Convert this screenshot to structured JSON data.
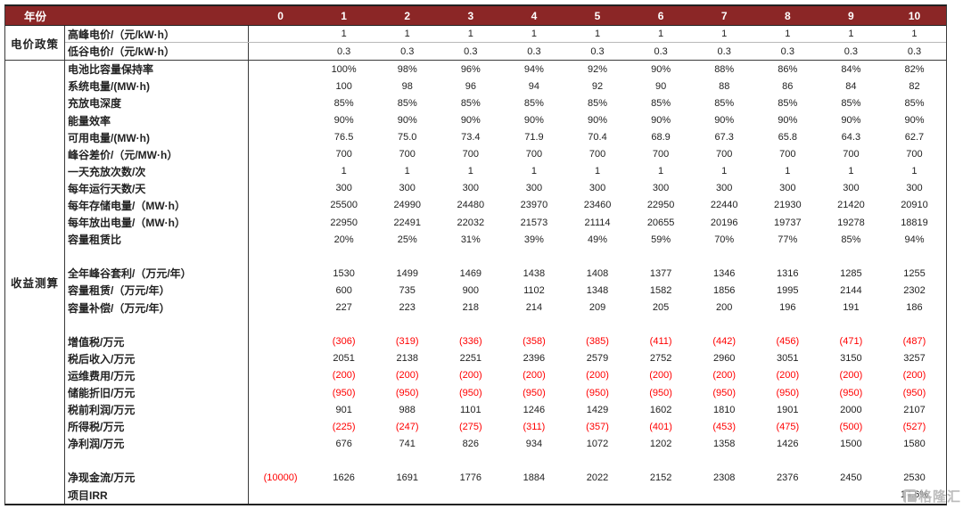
{
  "colors": {
    "header_bg": "#8B2626",
    "header_text": "#FFFFFF",
    "negative": "#FF0000",
    "text": "#222222",
    "border": "#3a3a3a",
    "watermark": "#b4b4b4"
  },
  "header": {
    "year_label": "年份",
    "years": [
      "0",
      "1",
      "2",
      "3",
      "4",
      "5",
      "6",
      "7",
      "8",
      "9",
      "10"
    ]
  },
  "sections": [
    {
      "group": "电价政策",
      "rows": [
        {
          "label": "高峰电价/（元/kW·h）",
          "values": [
            "",
            "1",
            "1",
            "1",
            "1",
            "1",
            "1",
            "1",
            "1",
            "1",
            "1"
          ]
        },
        {
          "label": "低谷电价/（元/kW·h）",
          "values": [
            "",
            "0.3",
            "0.3",
            "0.3",
            "0.3",
            "0.3",
            "0.3",
            "0.3",
            "0.3",
            "0.3",
            "0.3"
          ]
        }
      ]
    },
    {
      "group": "收益测算",
      "rows": [
        {
          "label": "电池比容量保持率",
          "values": [
            "",
            "100%",
            "98%",
            "96%",
            "94%",
            "92%",
            "90%",
            "88%",
            "86%",
            "84%",
            "82%"
          ]
        },
        {
          "label": "系统电量/(MW·h)",
          "values": [
            "",
            "100",
            "98",
            "96",
            "94",
            "92",
            "90",
            "88",
            "86",
            "84",
            "82"
          ]
        },
        {
          "label": "充放电深度",
          "values": [
            "",
            "85%",
            "85%",
            "85%",
            "85%",
            "85%",
            "85%",
            "85%",
            "85%",
            "85%",
            "85%"
          ]
        },
        {
          "label": "能量效率",
          "values": [
            "",
            "90%",
            "90%",
            "90%",
            "90%",
            "90%",
            "90%",
            "90%",
            "90%",
            "90%",
            "90%"
          ]
        },
        {
          "label": "可用电量/(MW·h)",
          "values": [
            "",
            "76.5",
            "75.0",
            "73.4",
            "71.9",
            "70.4",
            "68.9",
            "67.3",
            "65.8",
            "64.3",
            "62.7"
          ]
        },
        {
          "label": "峰谷差价/（元/MW·h）",
          "values": [
            "",
            "700",
            "700",
            "700",
            "700",
            "700",
            "700",
            "700",
            "700",
            "700",
            "700"
          ]
        },
        {
          "label": "一天充放次数/次",
          "values": [
            "",
            "1",
            "1",
            "1",
            "1",
            "1",
            "1",
            "1",
            "1",
            "1",
            "1"
          ]
        },
        {
          "label": "每年运行天数/天",
          "values": [
            "",
            "300",
            "300",
            "300",
            "300",
            "300",
            "300",
            "300",
            "300",
            "300",
            "300"
          ]
        },
        {
          "label": "每年存储电量/（MW·h）",
          "values": [
            "",
            "25500",
            "24990",
            "24480",
            "23970",
            "23460",
            "22950",
            "22440",
            "21930",
            "21420",
            "20910"
          ]
        },
        {
          "label": "每年放出电量/（MW·h）",
          "values": [
            "",
            "22950",
            "22491",
            "22032",
            "21573",
            "21114",
            "20655",
            "20196",
            "19737",
            "19278",
            "18819"
          ]
        },
        {
          "label": "容量租赁比",
          "values": [
            "",
            "20%",
            "25%",
            "31%",
            "39%",
            "49%",
            "59%",
            "70%",
            "77%",
            "85%",
            "94%"
          ]
        },
        {
          "label": "",
          "values": [
            "",
            "",
            "",
            "",
            "",
            "",
            "",
            "",
            "",
            "",
            ""
          ]
        },
        {
          "label": "全年峰谷套利/（万元/年）",
          "values": [
            "",
            "1530",
            "1499",
            "1469",
            "1438",
            "1408",
            "1377",
            "1346",
            "1316",
            "1285",
            "1255"
          ]
        },
        {
          "label": "容量租赁/（万元/年）",
          "values": [
            "",
            "600",
            "735",
            "900",
            "1102",
            "1348",
            "1582",
            "1856",
            "1995",
            "2144",
            "2302"
          ]
        },
        {
          "label": "容量补偿/（万元/年）",
          "values": [
            "",
            "227",
            "223",
            "218",
            "214",
            "209",
            "205",
            "200",
            "196",
            "191",
            "186"
          ]
        },
        {
          "label": "",
          "values": [
            "",
            "",
            "",
            "",
            "",
            "",
            "",
            "",
            "",
            "",
            ""
          ]
        },
        {
          "label": "增值税/万元",
          "values": [
            "",
            "(306)",
            "(319)",
            "(336)",
            "(358)",
            "(385)",
            "(411)",
            "(442)",
            "(456)",
            "(471)",
            "(487)"
          ]
        },
        {
          "label": "税后收入/万元",
          "values": [
            "",
            "2051",
            "2138",
            "2251",
            "2396",
            "2579",
            "2752",
            "2960",
            "3051",
            "3150",
            "3257"
          ]
        },
        {
          "label": "运维费用/万元",
          "values": [
            "",
            "(200)",
            "(200)",
            "(200)",
            "(200)",
            "(200)",
            "(200)",
            "(200)",
            "(200)",
            "(200)",
            "(200)"
          ]
        },
        {
          "label": "储能折旧/万元",
          "values": [
            "",
            "(950)",
            "(950)",
            "(950)",
            "(950)",
            "(950)",
            "(950)",
            "(950)",
            "(950)",
            "(950)",
            "(950)"
          ]
        },
        {
          "label": "税前利润/万元",
          "values": [
            "",
            "901",
            "988",
            "1101",
            "1246",
            "1429",
            "1602",
            "1810",
            "1901",
            "2000",
            "2107"
          ]
        },
        {
          "label": "所得税/万元",
          "values": [
            "",
            "(225)",
            "(247)",
            "(275)",
            "(311)",
            "(357)",
            "(401)",
            "(453)",
            "(475)",
            "(500)",
            "(527)"
          ]
        },
        {
          "label": "净利润/万元",
          "values": [
            "",
            "676",
            "741",
            "826",
            "934",
            "1072",
            "1202",
            "1358",
            "1426",
            "1500",
            "1580"
          ]
        },
        {
          "label": "",
          "values": [
            "",
            "",
            "",
            "",
            "",
            "",
            "",
            "",
            "",
            "",
            ""
          ]
        },
        {
          "label": "净现金流/万元",
          "values": [
            "(10000)",
            "1626",
            "1691",
            "1776",
            "1884",
            "2022",
            "2152",
            "2308",
            "2376",
            "2450",
            "2530"
          ]
        },
        {
          "label": "项目IRR",
          "values": [
            "",
            "",
            "",
            "",
            "",
            "",
            "",
            "",
            "",
            "",
            "14.6%"
          ]
        }
      ]
    }
  ],
  "watermark": {
    "text": "格隆汇"
  }
}
